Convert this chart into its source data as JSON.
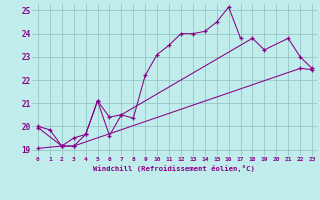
{
  "xlabel": "Windchill (Refroidissement éolien,°C)",
  "bg_color": "#c0ecec",
  "grid_color": "#96c8c8",
  "line_color": "#880088",
  "xlim_min": -0.5,
  "xlim_max": 23.4,
  "ylim_min": 18.72,
  "ylim_max": 25.28,
  "xticks": [
    0,
    1,
    2,
    3,
    4,
    5,
    6,
    7,
    8,
    9,
    10,
    11,
    12,
    13,
    14,
    15,
    16,
    17,
    18,
    19,
    20,
    21,
    22,
    23
  ],
  "yticks": [
    19,
    20,
    21,
    22,
    23,
    24,
    25
  ],
  "line1_x": [
    0,
    1,
    2,
    3,
    4,
    5,
    6,
    7,
    8,
    9,
    10,
    11,
    12,
    13,
    14,
    15,
    16,
    17
  ],
  "line1_y": [
    20.0,
    19.85,
    19.15,
    19.5,
    19.65,
    21.1,
    19.6,
    20.5,
    20.35,
    22.2,
    23.1,
    23.5,
    24.0,
    24.0,
    24.1,
    24.5,
    25.15,
    23.8
  ],
  "line2_x": [
    0,
    2,
    3,
    4,
    5,
    6,
    7,
    18,
    19,
    21,
    22,
    23
  ],
  "line2_y": [
    19.95,
    19.15,
    19.15,
    19.65,
    21.1,
    20.4,
    20.5,
    23.8,
    23.3,
    23.8,
    23.0,
    22.5
  ],
  "line3_x": [
    0,
    2,
    3,
    22,
    23
  ],
  "line3_y": [
    19.05,
    19.15,
    19.15,
    22.5,
    22.45
  ]
}
